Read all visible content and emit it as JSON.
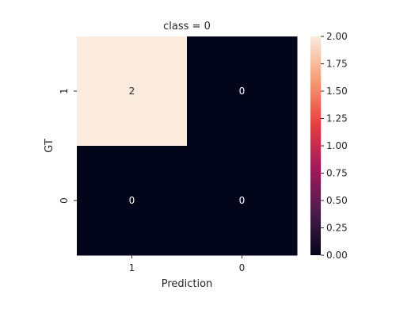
{
  "chart_data": {
    "type": "heatmap",
    "title": "class = 0",
    "xlabel": "Prediction",
    "ylabel": "GT",
    "x_categories": [
      "1",
      "0"
    ],
    "y_categories": [
      "1",
      "0"
    ],
    "values": [
      [
        2,
        0
      ],
      [
        0,
        0
      ]
    ],
    "cell_labels": [
      [
        "2",
        "0"
      ],
      [
        "0",
        "0"
      ]
    ],
    "colorbar": {
      "range": [
        0,
        2
      ],
      "ticks": [
        0,
        0.25,
        0.5,
        0.75,
        1.0,
        1.25,
        1.5,
        1.75,
        2.0
      ],
      "tick_labels": [
        "0.00",
        "0.25",
        "0.50",
        "0.75",
        "1.00",
        "1.25",
        "1.50",
        "1.75",
        "2.00"
      ],
      "colormap": "rocket",
      "colors": [
        "#03051a",
        "#4c1d4b",
        "#a11a5b",
        "#e83f3f",
        "#f69c73",
        "#faebdd"
      ]
    }
  }
}
